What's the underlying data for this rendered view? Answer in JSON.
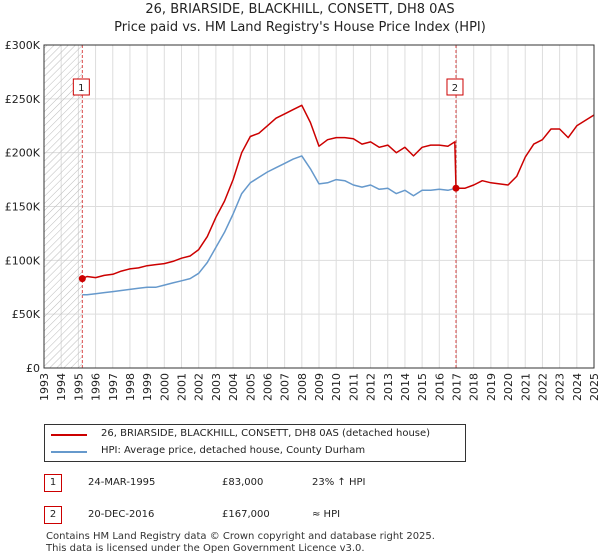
{
  "chart_title_line1": "26, BRIARSIDE, BLACKHILL, CONSETT, DH8 0AS",
  "chart_title_line2": "Price paid vs. HM Land Registry's House Price Index (HPI)",
  "colors": {
    "price_paid": "#cc0000",
    "hpi": "#6699cc",
    "marker_box": "#cc0000",
    "hatch": "#bbbbbb"
  },
  "legend": {
    "price_paid_label": "26, BRIARSIDE, BLACKHILL, CONSETT, DH8 0AS (detached house)",
    "hpi_label": "HPI: Average price, detached house, County Durham"
  },
  "transactions": [
    {
      "num": "1",
      "date": "24-MAR-1995",
      "price": "£83,000",
      "hpi": "23% ↑ HPI"
    },
    {
      "num": "2",
      "date": "20-DEC-2016",
      "price": "£167,000",
      "hpi": "≈ HPI"
    }
  ],
  "footer": {
    "line1": "Contains HM Land Registry data © Crown copyright and database right 2025.",
    "line2": "This data is licensed under the Open Government Licence v3.0."
  },
  "chart_data": {
    "type": "line",
    "title": "26, BRIARSIDE, BLACKHILL, CONSETT, DH8 0AS — Price paid vs. HM Land Registry's House Price Index (HPI)",
    "xlabel": "",
    "ylabel": "",
    "xlim": [
      1993,
      2025
    ],
    "ylim": [
      0,
      300000
    ],
    "x_ticks": [
      1993,
      1994,
      1995,
      1996,
      1997,
      1998,
      1999,
      2000,
      2001,
      2002,
      2003,
      2004,
      2005,
      2006,
      2007,
      2008,
      2009,
      2010,
      2011,
      2012,
      2013,
      2014,
      2015,
      2016,
      2017,
      2018,
      2019,
      2020,
      2021,
      2022,
      2023,
      2024,
      2025
    ],
    "y_ticks": [
      {
        "value": 0,
        "label": "£0"
      },
      {
        "value": 50000,
        "label": "£50K"
      },
      {
        "value": 100000,
        "label": "£100K"
      },
      {
        "value": 150000,
        "label": "£150K"
      },
      {
        "value": 200000,
        "label": "£200K"
      },
      {
        "value": 250000,
        "label": "£250K"
      },
      {
        "value": 300000,
        "label": "£300K"
      }
    ],
    "grid": true,
    "hatched_region": [
      1993,
      1995.23
    ],
    "sales": [
      {
        "label": "1",
        "x": 1995.23,
        "y": 83000
      },
      {
        "label": "2",
        "x": 2016.97,
        "y": 167000
      }
    ],
    "series": [
      {
        "name": "26, BRIARSIDE, BLACKHILL, CONSETT, DH8 0AS (detached house)",
        "x": [
          1995.23,
          1995.5,
          1996,
          1996.5,
          1997,
          1997.5,
          1998,
          1998.5,
          1999,
          1999.5,
          2000,
          2000.5,
          2001,
          2001.5,
          2002,
          2002.5,
          2003,
          2003.5,
          2004,
          2004.5,
          2005,
          2005.5,
          2006,
          2006.5,
          2007,
          2007.5,
          2008,
          2008.5,
          2009,
          2009.5,
          2010,
          2010.5,
          2011,
          2011.5,
          2012,
          2012.5,
          2013,
          2013.5,
          2014,
          2014.5,
          2015,
          2015.5,
          2016,
          2016.5,
          2016.9,
          2016.97,
          2017.5,
          2018,
          2018.5,
          2019,
          2019.5,
          2020,
          2020.5,
          2021,
          2021.5,
          2022,
          2022.5,
          2023,
          2023.5,
          2024,
          2024.5,
          2025
        ],
        "values": [
          83000,
          85000,
          84000,
          86000,
          87000,
          90000,
          92000,
          93000,
          95000,
          96000,
          97000,
          99000,
          102000,
          104000,
          110000,
          122000,
          140000,
          155000,
          175000,
          200000,
          215000,
          218000,
          225000,
          232000,
          236000,
          240000,
          244000,
          228000,
          206000,
          212000,
          214000,
          214000,
          213000,
          208000,
          210000,
          205000,
          207000,
          200000,
          205000,
          197000,
          205000,
          207000,
          207000,
          206000,
          210000,
          167000,
          167000,
          170000,
          174000,
          172000,
          171000,
          170000,
          178000,
          196000,
          208000,
          212000,
          222000,
          222000,
          214000,
          225000,
          230000,
          235000
        ]
      },
      {
        "name": "HPI: Average price, detached house, County Durham",
        "x": [
          1995.23,
          1995.5,
          1996,
          1996.5,
          1997,
          1997.5,
          1998,
          1998.5,
          1999,
          1999.5,
          2000,
          2000.5,
          2001,
          2001.5,
          2002,
          2002.5,
          2003,
          2003.5,
          2004,
          2004.5,
          2005,
          2005.5,
          2006,
          2006.5,
          2007,
          2007.5,
          2008,
          2008.5,
          2009,
          2009.5,
          2010,
          2010.5,
          2011,
          2011.5,
          2012,
          2012.5,
          2013,
          2013.5,
          2014,
          2014.5,
          2015,
          2015.5,
          2016,
          2016.5,
          2016.97
        ],
        "values": [
          68000,
          68000,
          69000,
          70000,
          71000,
          72000,
          73000,
          74000,
          75000,
          75000,
          77000,
          79000,
          81000,
          83000,
          88000,
          98000,
          112000,
          126000,
          143000,
          162000,
          172000,
          177000,
          182000,
          186000,
          190000,
          194000,
          197000,
          185000,
          171000,
          172000,
          175000,
          174000,
          170000,
          168000,
          170000,
          166000,
          167000,
          162000,
          165000,
          160000,
          165000,
          165000,
          166000,
          165000,
          167000
        ]
      }
    ]
  }
}
